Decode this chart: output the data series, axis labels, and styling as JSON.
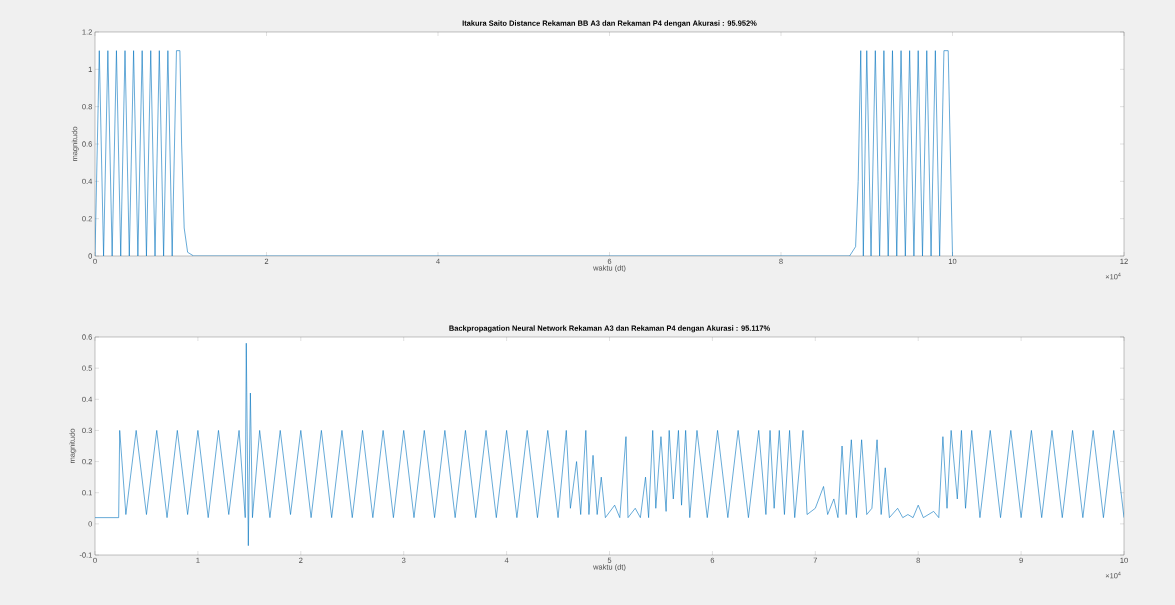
{
  "chart_data": [
    {
      "type": "line",
      "title": "Itakura Saito Distance Rekaman BB A3 dan Rekaman P4 dengan Akurasi : 95.952%",
      "xlabel": "waktu (dt)",
      "ylabel": "magnitudo",
      "color": "#0072bd",
      "annotations": [
        "×10$^{4}$"
      ],
      "xlim": [
        0,
        12
      ],
      "ylim": [
        0,
        1.2
      ],
      "xticks": [
        0,
        2,
        4,
        6,
        8,
        10,
        12
      ],
      "yticks": [
        0,
        0.2,
        0.4,
        0.6,
        0.8,
        1,
        1.2
      ],
      "x": [
        0,
        0.05,
        0.1,
        0.15,
        0.2,
        0.25,
        0.3,
        0.35,
        0.4,
        0.45,
        0.5,
        0.55,
        0.6,
        0.65,
        0.7,
        0.75,
        0.8,
        0.85,
        0.9,
        0.95,
        0.99,
        1.01,
        1.04,
        1.08,
        1.15,
        8.8,
        8.87,
        8.9,
        8.93,
        8.96,
        9,
        9.05,
        9.1,
        9.15,
        9.2,
        9.25,
        9.3,
        9.35,
        9.4,
        9.45,
        9.5,
        9.55,
        9.6,
        9.65,
        9.7,
        9.75,
        9.8,
        9.85,
        9.9,
        9.95,
        10
      ],
      "values": [
        0,
        1.1,
        0,
        1.1,
        0,
        1.1,
        0,
        1.1,
        0,
        1.1,
        0,
        1.1,
        0,
        1.1,
        0,
        1.1,
        0,
        1.1,
        0,
        1.1,
        1.1,
        0.6,
        0.15,
        0.02,
        0,
        0,
        0.05,
        0.4,
        1.1,
        0,
        1.1,
        0,
        1.1,
        0,
        1.1,
        0,
        1.1,
        0,
        1.1,
        0,
        1.1,
        0,
        1.1,
        0,
        1.1,
        0,
        1.1,
        0,
        1.1,
        1.1,
        0
      ]
    },
    {
      "type": "line",
      "title": "Backpropagation Neural Network Rekaman A3 dan Rekaman P4 dengan Akurasi : 95.117%",
      "xlabel": "waktu (dt)",
      "ylabel": "magnitudo",
      "color": "#0072bd",
      "annotations": [
        "×10$^{4}$"
      ],
      "xlim": [
        0,
        10
      ],
      "ylim": [
        -0.1,
        0.6
      ],
      "xticks": [
        0,
        1,
        2,
        3,
        4,
        5,
        6,
        7,
        8,
        9,
        10
      ],
      "yticks": [
        -0.1,
        0,
        0.1,
        0.2,
        0.3,
        0.4,
        0.5,
        0.6
      ],
      "x": [
        0,
        0.23,
        0.24,
        0.3,
        0.4,
        0.5,
        0.6,
        0.7,
        0.8,
        0.9,
        1,
        1.1,
        1.2,
        1.3,
        1.4,
        1.46,
        1.47,
        1.49,
        1.51,
        1.53,
        1.6,
        1.7,
        1.8,
        1.9,
        2,
        2.1,
        2.2,
        2.3,
        2.4,
        2.5,
        2.6,
        2.7,
        2.8,
        2.9,
        3,
        3.1,
        3.2,
        3.3,
        3.4,
        3.5,
        3.6,
        3.7,
        3.8,
        3.9,
        4,
        4.1,
        4.2,
        4.3,
        4.4,
        4.5,
        4.58,
        4.62,
        4.68,
        4.72,
        4.77,
        4.8,
        4.84,
        4.88,
        4.92,
        4.96,
        5.05,
        5.1,
        5.16,
        5.18,
        5.25,
        5.3,
        5.35,
        5.38,
        5.42,
        5.45,
        5.5,
        5.55,
        5.58,
        5.62,
        5.67,
        5.7,
        5.74,
        5.78,
        5.85,
        5.95,
        6.05,
        6.15,
        6.25,
        6.35,
        6.45,
        6.52,
        6.56,
        6.6,
        6.65,
        6.7,
        6.75,
        6.8,
        6.88,
        6.92,
        7,
        7.08,
        7.12,
        7.18,
        7.22,
        7.26,
        7.3,
        7.35,
        7.4,
        7.45,
        7.5,
        7.55,
        7.6,
        7.64,
        7.68,
        7.72,
        7.8,
        7.85,
        7.9,
        7.95,
        8,
        8.05,
        8.15,
        8.2,
        8.24,
        8.28,
        8.32,
        8.38,
        8.42,
        8.46,
        8.52,
        8.6,
        8.7,
        8.8,
        8.9,
        9,
        9.1,
        9.2,
        9.3,
        9.4,
        9.5,
        9.6,
        9.7,
        9.8,
        9.9,
        10
      ],
      "values": [
        0.02,
        0.02,
        0.3,
        0.03,
        0.3,
        0.03,
        0.3,
        0.02,
        0.3,
        0.03,
        0.3,
        0.02,
        0.3,
        0.03,
        0.3,
        0.02,
        0.58,
        -0.07,
        0.42,
        0.02,
        0.3,
        0.02,
        0.3,
        0.03,
        0.3,
        0.02,
        0.3,
        0.02,
        0.3,
        0.02,
        0.3,
        0.02,
        0.3,
        0.02,
        0.3,
        0.02,
        0.3,
        0.02,
        0.3,
        0.02,
        0.3,
        0.02,
        0.3,
        0.02,
        0.3,
        0.02,
        0.3,
        0.02,
        0.3,
        0.02,
        0.3,
        0.05,
        0.2,
        0.03,
        0.3,
        0.03,
        0.22,
        0.03,
        0.15,
        0.02,
        0.06,
        0.02,
        0.28,
        0.02,
        0.05,
        0.02,
        0.15,
        0.02,
        0.3,
        0.05,
        0.28,
        0.04,
        0.3,
        0.08,
        0.3,
        0.06,
        0.3,
        0.02,
        0.3,
        0.02,
        0.3,
        0.02,
        0.3,
        0.02,
        0.3,
        0.03,
        0.3,
        0.05,
        0.3,
        0.03,
        0.3,
        0.02,
        0.3,
        0.03,
        0.05,
        0.12,
        0.03,
        0.08,
        0.02,
        0.25,
        0.03,
        0.27,
        0.02,
        0.27,
        0.03,
        0.05,
        0.27,
        0.03,
        0.18,
        0.02,
        0.05,
        0.02,
        0.03,
        0.02,
        0.06,
        0.02,
        0.04,
        0.02,
        0.28,
        0.05,
        0.3,
        0.08,
        0.3,
        0.05,
        0.3,
        0.02,
        0.3,
        0.02,
        0.3,
        0.02,
        0.3,
        0.02,
        0.3,
        0.02,
        0.3,
        0.02,
        0.3,
        0.02,
        0.3,
        0.02
      ]
    }
  ]
}
